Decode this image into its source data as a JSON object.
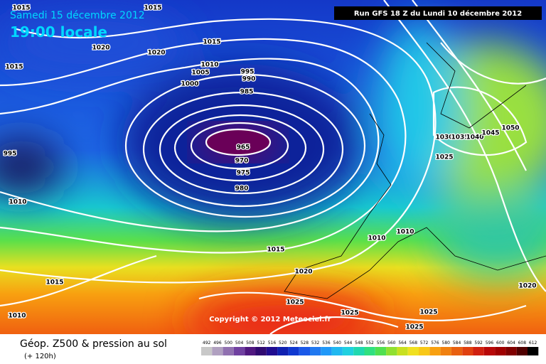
{
  "header": {
    "date": "Samedi 15 décembre 2012",
    "time": "19:00 locale",
    "run": "Run GFS 18 Z du Lundi 10 décembre 2012"
  },
  "isobar_labels": [
    "1015",
    "1015",
    "1020",
    "1020",
    "1015",
    "1015",
    "1010",
    "1005",
    "995",
    "990",
    "1000",
    "985",
    "965",
    "970",
    "975",
    "980",
    "995",
    "1010",
    "1030",
    "1035",
    "1040",
    "1045",
    "1050",
    "1025",
    "1010",
    "1010",
    "1015",
    "1020",
    "1015",
    "1025",
    "1025",
    "1025",
    "1025",
    "1010",
    "1020"
  ],
  "copyright": "Copyright © 2012 Meteociel.fr",
  "footer": {
    "title": "Géop. Z500 & pression au sol",
    "lead": "(+ 120h)"
  },
  "scale": {
    "values": [
      492,
      496,
      500,
      504,
      508,
      512,
      516,
      520,
      524,
      528,
      532,
      536,
      540,
      544,
      548,
      552,
      556,
      560,
      564,
      568,
      572,
      576,
      580,
      584,
      588,
      592,
      596,
      600,
      604,
      608,
      612
    ]
  }
}
